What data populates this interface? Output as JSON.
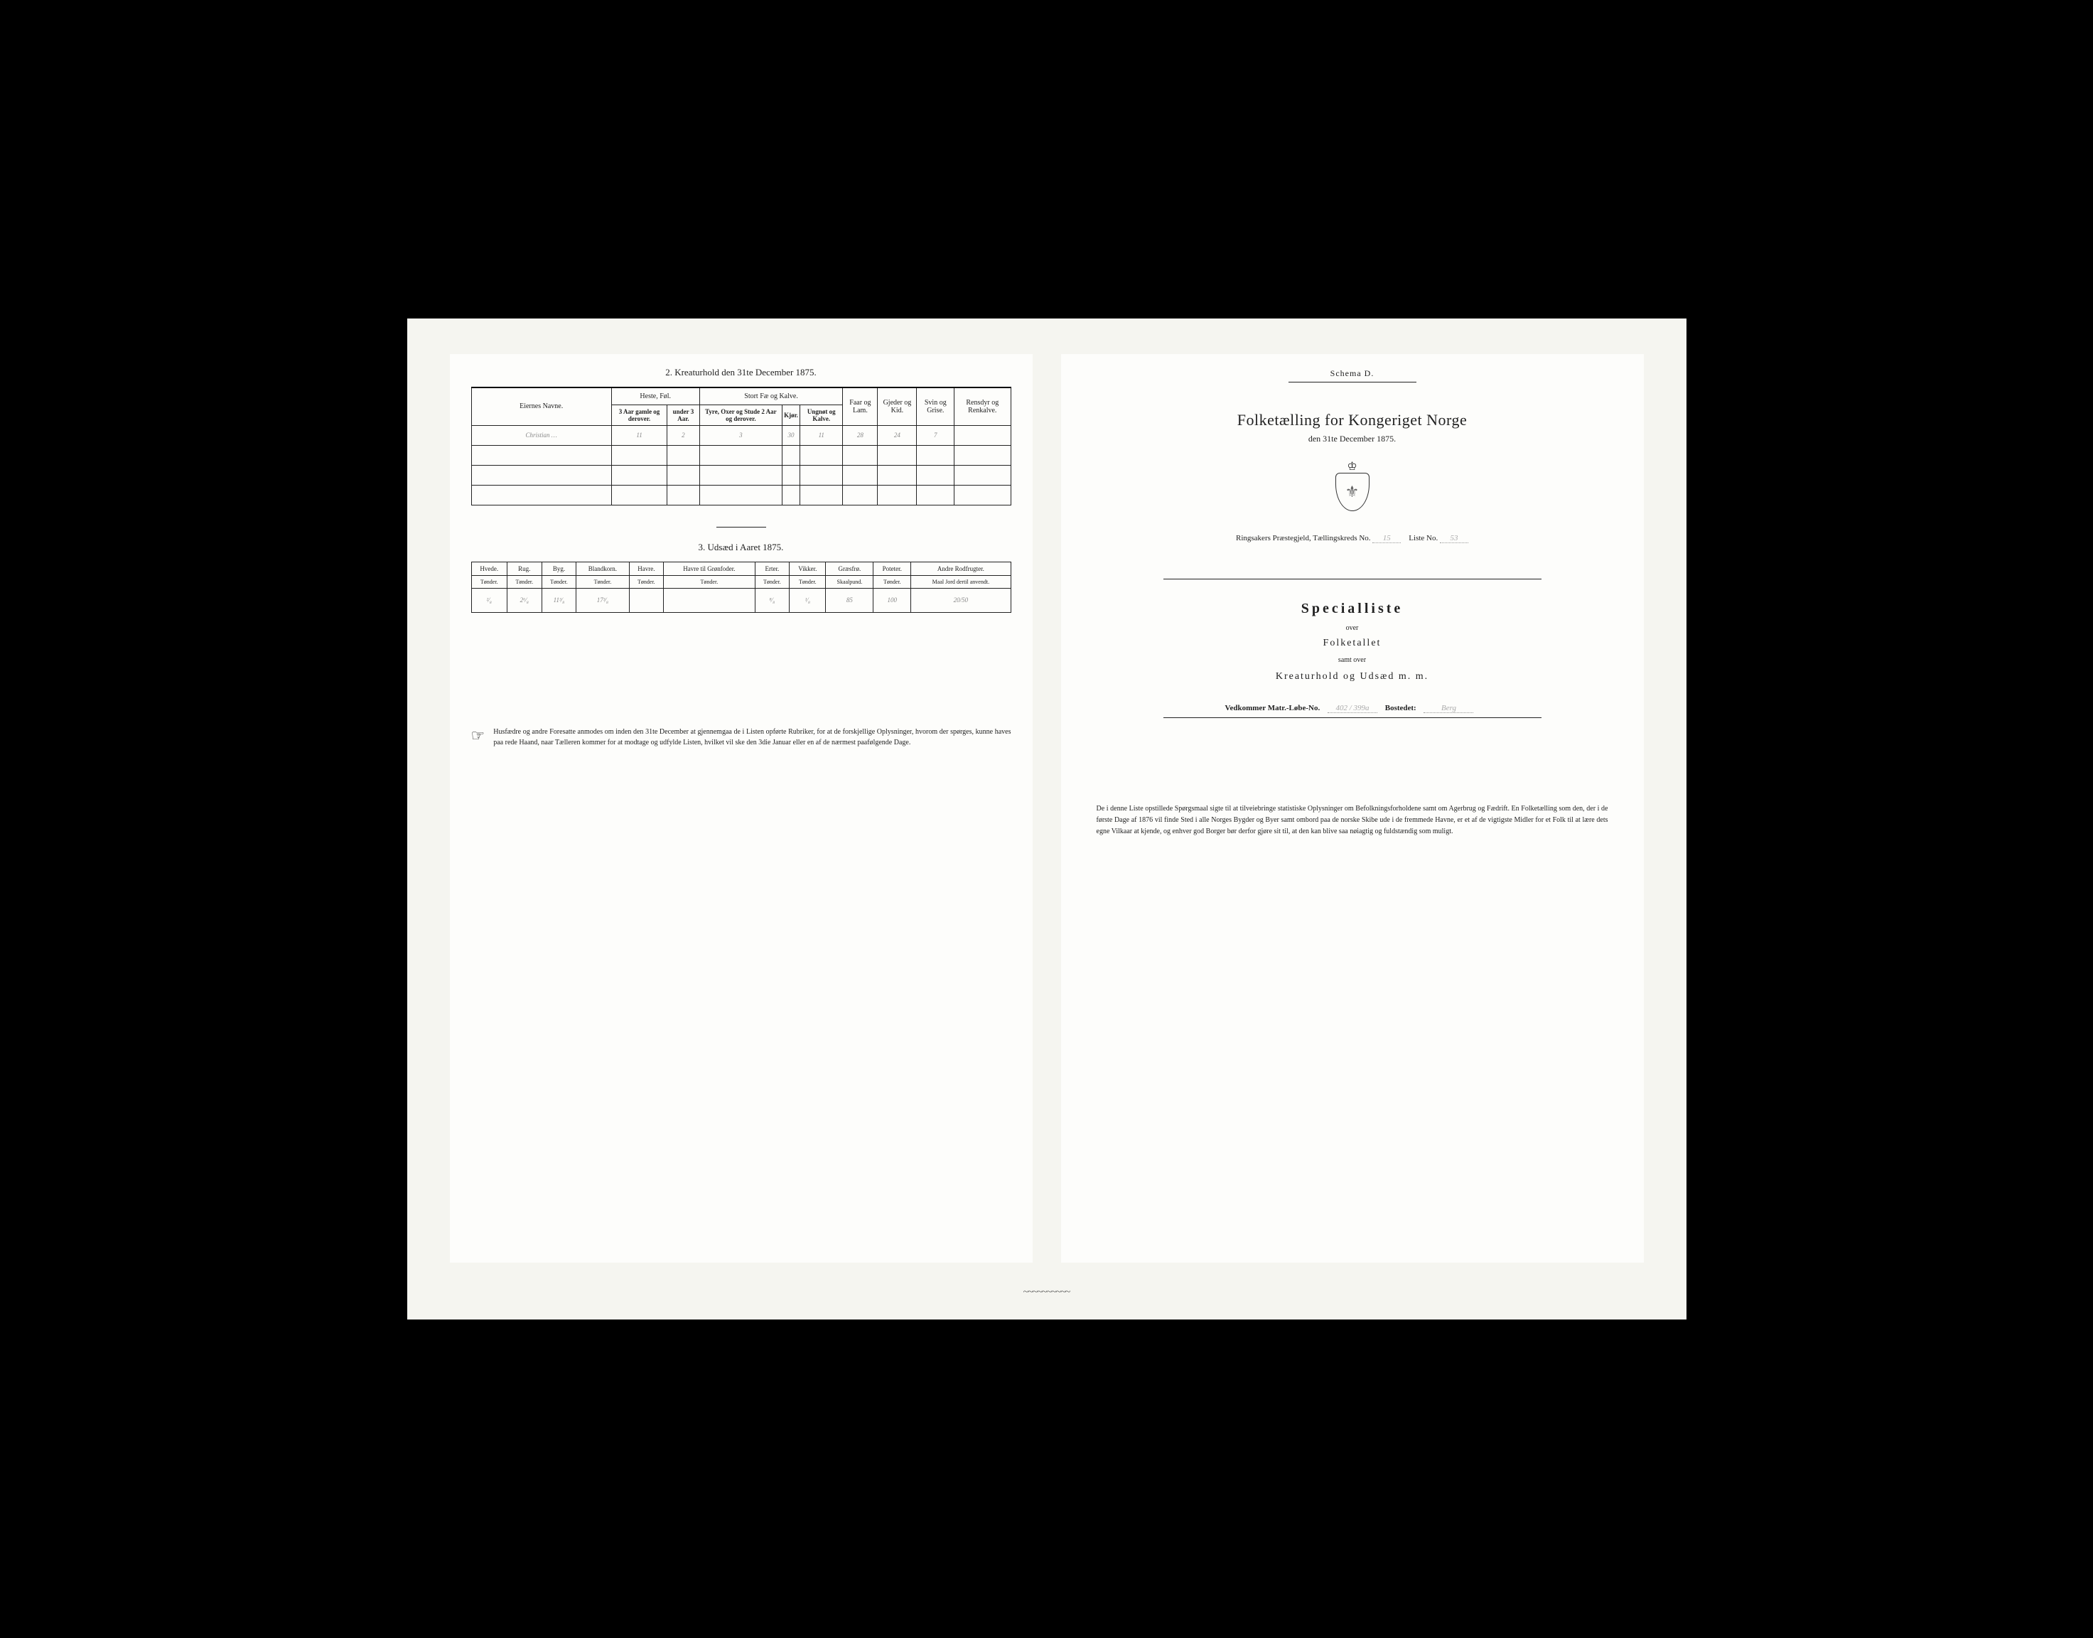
{
  "left": {
    "section2_title": "2. Kreaturhold den 31te December 1875.",
    "kreatur_table": {
      "owner_header": "Eiernes Navne.",
      "group_headers": [
        "Heste, Føl.",
        "Stort Fæ og Kalve.",
        "Faar og Lam.",
        "Gjeder og Kid.",
        "Svin og Grise.",
        "Rensdyr og Renkalve."
      ],
      "sub_headers": [
        "3 Aar gamle og derover.",
        "under 3 Aar.",
        "Tyre, Oxer og Stude 2 Aar og derover.",
        "Kjør.",
        "Ungnøt og Kalve."
      ],
      "row1": {
        "owner": "Christian …",
        "vals": [
          "11",
          "2",
          "3",
          "30",
          "11",
          "28",
          "24",
          "7",
          ""
        ]
      }
    },
    "section3_title": "3. Udsæd i Aaret 1875.",
    "udsaed_table": {
      "headers": [
        "Hvede.",
        "Rug.",
        "Byg.",
        "Blandkorn.",
        "Havre.",
        "Havre til Grønfoder.",
        "Erter.",
        "Vikker.",
        "Græsfrø.",
        "Poteter.",
        "Andre Rodfrugter."
      ],
      "unit": "Tønder.",
      "unit_graes": "Skaalpund.",
      "unit_jord": "Maal Jord dertil anvendt.",
      "row1": [
        "²⁄₈",
        "2⁶⁄₈",
        "11³⁄₈",
        "17³⁄₈",
        "",
        "",
        "⁸⁄₈",
        "¹⁄₈",
        "85",
        "100",
        "20/50"
      ]
    },
    "footnote": "Husfædre og andre Foresatte anmodes om inden den 31te December at gjennemgaa de i Listen opførte Rubriker, for at de forskjellige Oplysninger, hvorom der spørges, kunne haves paa rede Haand, naar Tælleren kommer for at modtage og udfylde Listen, hvilket vil ske den 3die Januar eller en af de nærmest paafølgende Dage."
  },
  "right": {
    "schema": "Schema D.",
    "main_title": "Folketælling for Kongeriget Norge",
    "sub_date": "den 31te December 1875.",
    "parish_line_prefix": "Ringsakers Præstegjeld,  Tællingskreds No.",
    "parish_kreds": "15",
    "liste_label": "Liste No.",
    "liste_no": "53",
    "special_title": "Specialliste",
    "over": "over",
    "folketallet": "Folketallet",
    "samt": "samt over",
    "kreatur_line": "Kreaturhold og Udsæd m. m.",
    "matr_label": "Vedkommer Matr.-Løbe-No.",
    "matr_val": "402 / 399a",
    "bosted_label": "Bostedet:",
    "bosted_val": "Berg",
    "footnote": "De i denne Liste opstillede Spørgsmaal sigte til at tilveiebringe statistiske Oplysninger om Befolkningsforholdene samt om Agerbrug og Fædrift. En Folketælling som den, der i de første Dage af 1876 vil finde Sted i alle Norges Bygder og Byer samt ombord paa de norske Skibe ude i de fremmede Havne, er et af de vigtigste Midler for et Folk til at lære dets egne Vilkaar at kjende, og enhver god Borger bør derfor gjøre sit til, at den kan blive saa nøiagtig og fuldstændig som muligt."
  }
}
